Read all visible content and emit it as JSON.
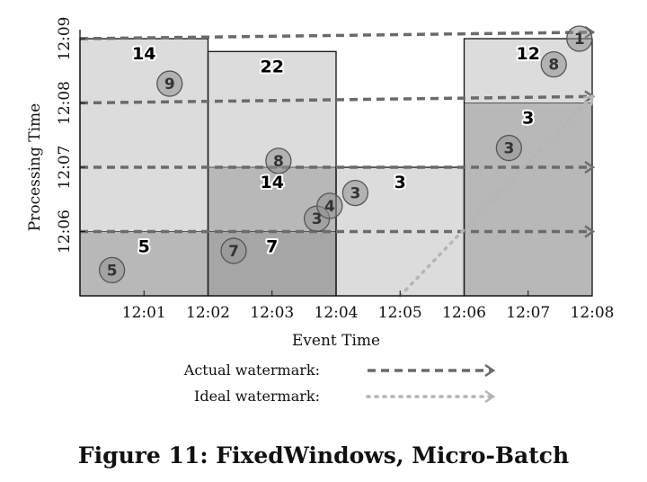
{
  "caption": "Figure 11: FixedWindows, Micro-Batch",
  "chart_data": {
    "type": "scatter",
    "xlabel": "Event Time",
    "ylabel": "Processing Time",
    "xlim": [
      "12:00",
      "12:08"
    ],
    "ylim": [
      "12:05",
      "12:09"
    ],
    "x_ticks": [
      "12:01",
      "12:02",
      "12:03",
      "12:04",
      "12:05",
      "12:06",
      "12:07",
      "12:08"
    ],
    "y_ticks": [
      "12:06",
      "12:07",
      "12:08",
      "12:09"
    ],
    "windows": [
      {
        "x0": "12:00",
        "x1": "12:02",
        "panes": [
          {
            "y0": "12:05",
            "y1": "12:06",
            "label": "5",
            "shade": "#b8b8b8"
          },
          {
            "y0": "12:06",
            "y1": "12:09",
            "label": "14",
            "shade": "#dcdcdc"
          }
        ]
      },
      {
        "x0": "12:02",
        "x1": "12:04",
        "panes": [
          {
            "y0": "12:05",
            "y1": "12:06",
            "label": "7",
            "shade": "#a6a6a6"
          },
          {
            "y0": "12:06",
            "y1": "12:07",
            "label": "14",
            "shade": "#b8b8b8"
          },
          {
            "y0": "12:07",
            "y1": "12:08.8",
            "label": "22",
            "shade": "#dcdcdc"
          }
        ]
      },
      {
        "x0": "12:04",
        "x1": "12:06",
        "panes": [
          {
            "y0": "12:05",
            "y1": "12:07",
            "label": "3",
            "shade": "#dcdcdc"
          }
        ]
      },
      {
        "x0": "12:06",
        "x1": "12:08",
        "panes": [
          {
            "y0": "12:05",
            "y1": "12:08",
            "label": "3",
            "shade": "#b8b8b8"
          },
          {
            "y0": "12:08",
            "y1": "12:09",
            "label": "12",
            "shade": "#dcdcdc"
          }
        ]
      }
    ],
    "points": [
      {
        "value": 5,
        "x": "12:00.5",
        "y": "12:05.4"
      },
      {
        "value": 9,
        "x": "12:01.4",
        "y": "12:08.3"
      },
      {
        "value": 7,
        "x": "12:02.4",
        "y": "12:05.7"
      },
      {
        "value": 8,
        "x": "12:03.1",
        "y": "12:07.1"
      },
      {
        "value": 3,
        "x": "12:03.7",
        "y": "12:06.2"
      },
      {
        "value": 4,
        "x": "12:03.9",
        "y": "12:06.4"
      },
      {
        "value": 3,
        "x": "12:04.3",
        "y": "12:06.6"
      },
      {
        "value": 3,
        "x": "12:06.7",
        "y": "12:07.3"
      },
      {
        "value": 8,
        "x": "12:07.4",
        "y": "12:08.6"
      },
      {
        "value": 1,
        "x": "12:07.8",
        "y": "12:09.0"
      }
    ],
    "watermark_lines": [
      {
        "x0": "12:00",
        "y0": "12:06",
        "x1": "12:08",
        "y1": "12:06"
      },
      {
        "x0": "12:00",
        "y0": "12:07",
        "x1": "12:08",
        "y1": "12:07"
      },
      {
        "x0": "12:00",
        "y0": "12:08",
        "x1": "12:08",
        "y1": "12:08.1"
      },
      {
        "x0": "12:00",
        "y0": "12:09",
        "x1": "12:08",
        "y1": "12:09.1"
      }
    ],
    "ideal_watermark": {
      "x0": "12:05",
      "y0": "12:05",
      "x1": "12:08",
      "y1": "12:08.1"
    },
    "legend": [
      {
        "label": "Actual watermark:",
        "style": "dashed",
        "color": "#6b6b6b"
      },
      {
        "label": "Ideal watermark:",
        "style": "dotted",
        "color": "#b5b5b5"
      }
    ],
    "colors": {
      "window_border": "#111111",
      "point_fill": "#8f8f8f",
      "point_stroke": "#555555",
      "actual": "#6b6b6b",
      "ideal": "#b5b5b5"
    }
  }
}
